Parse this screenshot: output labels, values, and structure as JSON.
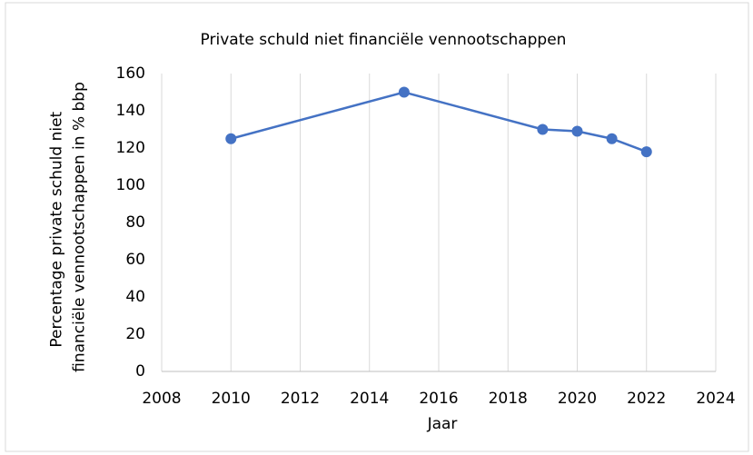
{
  "chart_data": {
    "type": "line",
    "title": "Private schuld niet financiële vennootschappen",
    "x": [
      2010,
      2015,
      2019,
      2020,
      2021,
      2022
    ],
    "series": [
      {
        "name": "Private schuld niet financiële vennootschappen",
        "color": "#4472c4",
        "values": [
          125,
          150,
          130,
          129,
          125,
          118
        ]
      }
    ],
    "xlabel": "Jaar",
    "ylabel": "Percentage private schuld niet financiële vennootschappen in % bbp",
    "xlim": [
      2008,
      2024
    ],
    "xticks": [
      2008,
      2010,
      2012,
      2014,
      2016,
      2018,
      2020,
      2022,
      2024
    ],
    "ylim": [
      0,
      160
    ],
    "yticks": [
      0,
      20,
      40,
      60,
      80,
      100,
      120,
      140,
      160
    ],
    "grid": "x"
  }
}
